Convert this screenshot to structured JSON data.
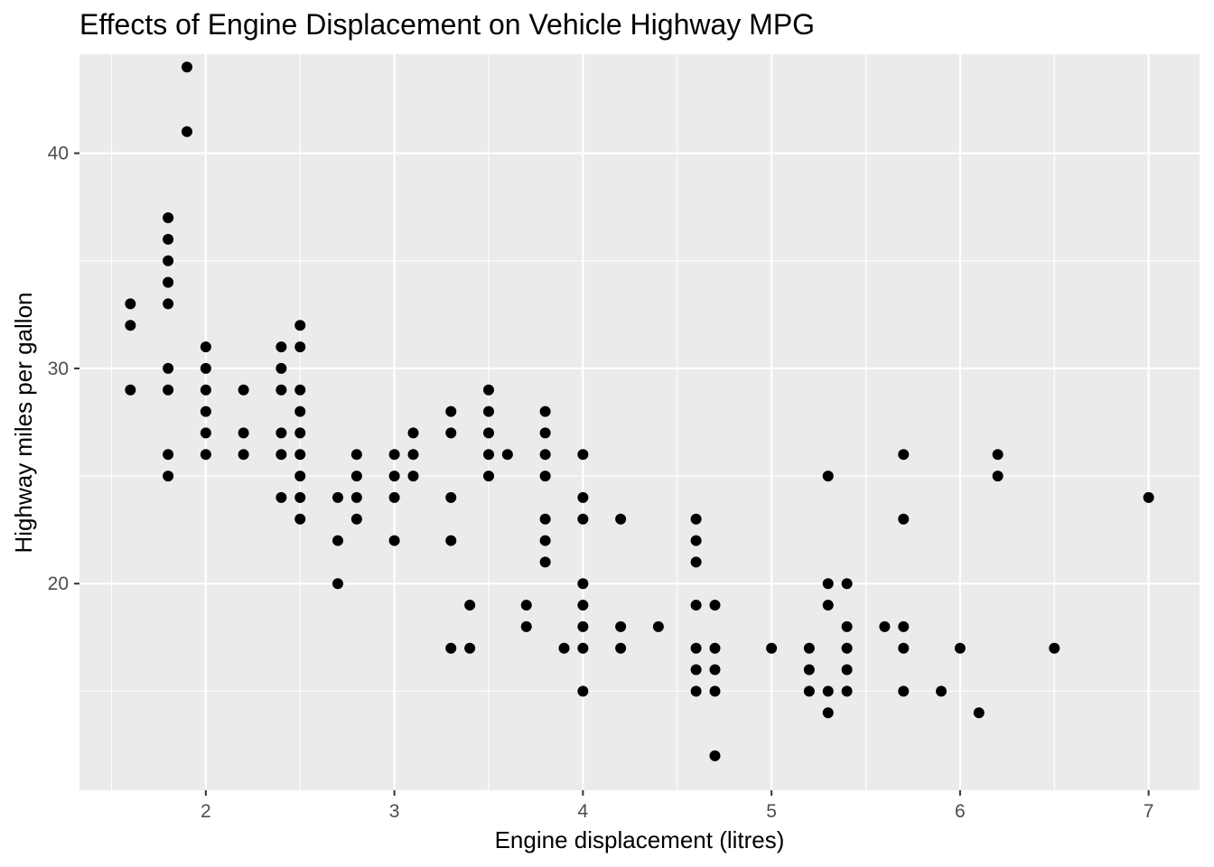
{
  "chart_data": {
    "type": "scatter",
    "title": "Effects of Engine Displacement on Vehicle Highway MPG",
    "xlabel": "Engine displacement (litres)",
    "ylabel": "Highway miles per gallon",
    "xlim": [
      1.33,
      7.27
    ],
    "ylim": [
      10.4,
      44.6
    ],
    "x_ticks": [
      "2",
      "3",
      "4",
      "5",
      "6",
      "7"
    ],
    "y_ticks": [
      "20",
      "30",
      "40"
    ],
    "grid": true,
    "legend": "none",
    "colors": {
      "panel": "#ebebeb",
      "grid_major": "#ffffff",
      "point": "#000000",
      "tick_text": "#4d4d4d"
    },
    "points": [
      {
        "x": 1.6,
        "y": 33
      },
      {
        "x": 1.6,
        "y": 32
      },
      {
        "x": 1.6,
        "y": 29
      },
      {
        "x": 1.8,
        "y": 37
      },
      {
        "x": 1.8,
        "y": 36
      },
      {
        "x": 1.8,
        "y": 35
      },
      {
        "x": 1.8,
        "y": 34
      },
      {
        "x": 1.8,
        "y": 33
      },
      {
        "x": 1.8,
        "y": 30
      },
      {
        "x": 1.8,
        "y": 29
      },
      {
        "x": 1.8,
        "y": 26
      },
      {
        "x": 1.8,
        "y": 25
      },
      {
        "x": 1.9,
        "y": 44
      },
      {
        "x": 1.9,
        "y": 41
      },
      {
        "x": 2.0,
        "y": 31
      },
      {
        "x": 2.0,
        "y": 30
      },
      {
        "x": 2.0,
        "y": 29
      },
      {
        "x": 2.0,
        "y": 28
      },
      {
        "x": 2.0,
        "y": 27
      },
      {
        "x": 2.0,
        "y": 26
      },
      {
        "x": 2.2,
        "y": 29
      },
      {
        "x": 2.2,
        "y": 27
      },
      {
        "x": 2.2,
        "y": 26
      },
      {
        "x": 2.4,
        "y": 31
      },
      {
        "x": 2.4,
        "y": 30
      },
      {
        "x": 2.4,
        "y": 29
      },
      {
        "x": 2.4,
        "y": 27
      },
      {
        "x": 2.4,
        "y": 26
      },
      {
        "x": 2.4,
        "y": 24
      },
      {
        "x": 2.5,
        "y": 32
      },
      {
        "x": 2.5,
        "y": 31
      },
      {
        "x": 2.5,
        "y": 29
      },
      {
        "x": 2.5,
        "y": 28
      },
      {
        "x": 2.5,
        "y": 27
      },
      {
        "x": 2.5,
        "y": 26
      },
      {
        "x": 2.5,
        "y": 25
      },
      {
        "x": 2.5,
        "y": 24
      },
      {
        "x": 2.5,
        "y": 23
      },
      {
        "x": 2.7,
        "y": 24
      },
      {
        "x": 2.7,
        "y": 22
      },
      {
        "x": 2.7,
        "y": 20
      },
      {
        "x": 2.8,
        "y": 26
      },
      {
        "x": 2.8,
        "y": 25
      },
      {
        "x": 2.8,
        "y": 24
      },
      {
        "x": 2.8,
        "y": 23
      },
      {
        "x": 3.0,
        "y": 26
      },
      {
        "x": 3.0,
        "y": 25
      },
      {
        "x": 3.0,
        "y": 24
      },
      {
        "x": 3.0,
        "y": 22
      },
      {
        "x": 3.1,
        "y": 27
      },
      {
        "x": 3.1,
        "y": 26
      },
      {
        "x": 3.1,
        "y": 25
      },
      {
        "x": 3.3,
        "y": 28
      },
      {
        "x": 3.3,
        "y": 27
      },
      {
        "x": 3.3,
        "y": 24
      },
      {
        "x": 3.3,
        "y": 22
      },
      {
        "x": 3.3,
        "y": 17
      },
      {
        "x": 3.4,
        "y": 19
      },
      {
        "x": 3.4,
        "y": 17
      },
      {
        "x": 3.5,
        "y": 29
      },
      {
        "x": 3.5,
        "y": 28
      },
      {
        "x": 3.5,
        "y": 27
      },
      {
        "x": 3.5,
        "y": 26
      },
      {
        "x": 3.5,
        "y": 25
      },
      {
        "x": 3.6,
        "y": 26
      },
      {
        "x": 3.7,
        "y": 19
      },
      {
        "x": 3.7,
        "y": 18
      },
      {
        "x": 3.8,
        "y": 28
      },
      {
        "x": 3.8,
        "y": 27
      },
      {
        "x": 3.8,
        "y": 26
      },
      {
        "x": 3.8,
        "y": 25
      },
      {
        "x": 3.8,
        "y": 23
      },
      {
        "x": 3.8,
        "y": 22
      },
      {
        "x": 3.8,
        "y": 21
      },
      {
        "x": 3.9,
        "y": 17
      },
      {
        "x": 4.0,
        "y": 26
      },
      {
        "x": 4.0,
        "y": 24
      },
      {
        "x": 4.0,
        "y": 23
      },
      {
        "x": 4.0,
        "y": 20
      },
      {
        "x": 4.0,
        "y": 19
      },
      {
        "x": 4.0,
        "y": 18
      },
      {
        "x": 4.0,
        "y": 17
      },
      {
        "x": 4.0,
        "y": 15
      },
      {
        "x": 4.2,
        "y": 23
      },
      {
        "x": 4.2,
        "y": 18
      },
      {
        "x": 4.2,
        "y": 17
      },
      {
        "x": 4.4,
        "y": 18
      },
      {
        "x": 4.6,
        "y": 23
      },
      {
        "x": 4.6,
        "y": 22
      },
      {
        "x": 4.6,
        "y": 21
      },
      {
        "x": 4.6,
        "y": 19
      },
      {
        "x": 4.6,
        "y": 17
      },
      {
        "x": 4.6,
        "y": 16
      },
      {
        "x": 4.6,
        "y": 15
      },
      {
        "x": 4.7,
        "y": 19
      },
      {
        "x": 4.7,
        "y": 17
      },
      {
        "x": 4.7,
        "y": 16
      },
      {
        "x": 4.7,
        "y": 15
      },
      {
        "x": 4.7,
        "y": 12
      },
      {
        "x": 5.0,
        "y": 17
      },
      {
        "x": 5.2,
        "y": 17
      },
      {
        "x": 5.2,
        "y": 16
      },
      {
        "x": 5.2,
        "y": 15
      },
      {
        "x": 5.3,
        "y": 25
      },
      {
        "x": 5.3,
        "y": 20
      },
      {
        "x": 5.3,
        "y": 19
      },
      {
        "x": 5.3,
        "y": 15
      },
      {
        "x": 5.3,
        "y": 14
      },
      {
        "x": 5.4,
        "y": 20
      },
      {
        "x": 5.4,
        "y": 18
      },
      {
        "x": 5.4,
        "y": 17
      },
      {
        "x": 5.4,
        "y": 16
      },
      {
        "x": 5.4,
        "y": 15
      },
      {
        "x": 5.6,
        "y": 18
      },
      {
        "x": 5.7,
        "y": 26
      },
      {
        "x": 5.7,
        "y": 23
      },
      {
        "x": 5.7,
        "y": 18
      },
      {
        "x": 5.7,
        "y": 17
      },
      {
        "x": 5.7,
        "y": 15
      },
      {
        "x": 5.9,
        "y": 15
      },
      {
        "x": 6.0,
        "y": 17
      },
      {
        "x": 6.1,
        "y": 14
      },
      {
        "x": 6.2,
        "y": 26
      },
      {
        "x": 6.2,
        "y": 25
      },
      {
        "x": 6.5,
        "y": 17
      },
      {
        "x": 7.0,
        "y": 24
      }
    ]
  }
}
